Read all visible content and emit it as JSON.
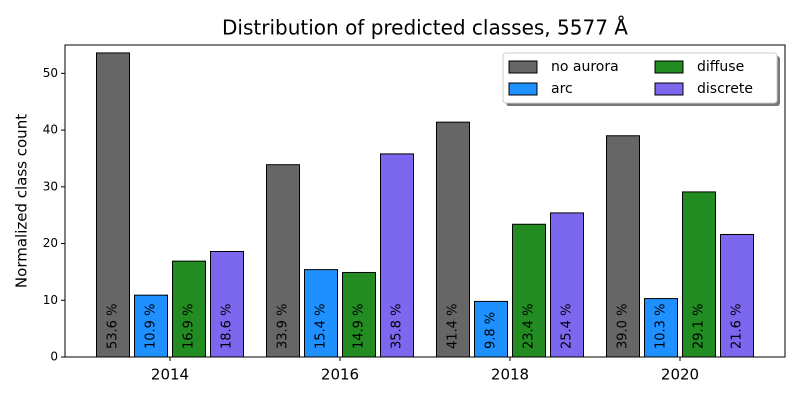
{
  "chart_data": {
    "type": "bar",
    "title": "Distribution of predicted classes, 5577 Å",
    "ylabel": "Normalized class count",
    "categories": [
      "2014",
      "2016",
      "2018",
      "2020"
    ],
    "series": [
      {
        "name": "no aurora",
        "color": "#666666",
        "values": [
          53.6,
          33.9,
          41.4,
          39.0
        ],
        "value_labels": [
          "53.6 %",
          "33.9 %",
          "41.4 %",
          "39.0 %"
        ]
      },
      {
        "name": "arc",
        "color": "#1e90ff",
        "values": [
          10.9,
          15.4,
          9.8,
          10.3
        ],
        "value_labels": [
          "10.9 %",
          "15.4 %",
          "9.8 %",
          "10.3 %"
        ]
      },
      {
        "name": "diffuse",
        "color": "#228b22",
        "values": [
          16.9,
          14.9,
          23.4,
          29.1
        ],
        "value_labels": [
          "16.9 %",
          "14.9 %",
          "23.4 %",
          "29.1 %"
        ]
      },
      {
        "name": "discrete",
        "color": "#7b68ee",
        "values": [
          18.6,
          35.8,
          25.4,
          21.6
        ],
        "value_labels": [
          "18.6 %",
          "35.8 %",
          "25.4 %",
          "21.6 %"
        ]
      }
    ],
    "ylim": [
      0,
      55
    ],
    "yticks": [
      0,
      10,
      20,
      30,
      40,
      50
    ],
    "legend": "upper right",
    "legend_columns": 2
  }
}
